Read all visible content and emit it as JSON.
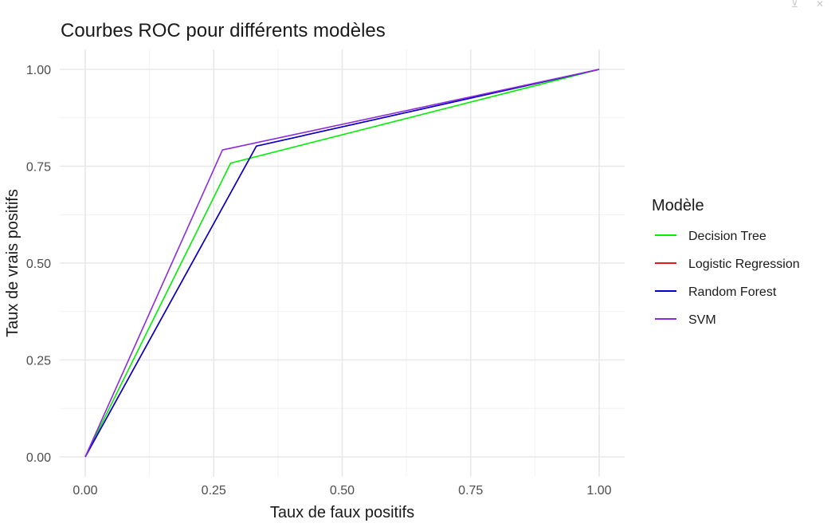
{
  "window_controls": {
    "minimize_glyph": "⊻",
    "close_glyph": "✕"
  },
  "chart_data": {
    "type": "line",
    "title": "Courbes ROC pour différents modèles",
    "xlabel": "Taux de faux positifs",
    "ylabel": "Taux de vrais positifs",
    "xlim": [
      0,
      1
    ],
    "ylim": [
      0,
      1
    ],
    "x_ticks": [
      0,
      0.25,
      0.5,
      0.75,
      1
    ],
    "y_ticks": [
      0,
      0.25,
      0.5,
      0.75,
      1
    ],
    "x_tick_labels": [
      "0.00",
      "0.25",
      "0.50",
      "0.75",
      "1.00"
    ],
    "y_tick_labels": [
      "0.00",
      "0.25",
      "0.50",
      "0.75",
      "1.00"
    ],
    "grid": true,
    "legend_title": "Modèle",
    "legend_position": "right",
    "series": [
      {
        "name": "Decision Tree",
        "color": "#00EE00",
        "x": [
          0,
          0.283,
          1
        ],
        "y": [
          0,
          0.758,
          1
        ]
      },
      {
        "name": "Logistic Regression",
        "color": "#E31A1C",
        "x": [
          0,
          0.333,
          1
        ],
        "y": [
          0,
          0.802,
          1
        ]
      },
      {
        "name": "Random Forest",
        "color": "#0000CD",
        "x": [
          0,
          0.333,
          1
        ],
        "y": [
          0,
          0.802,
          1
        ]
      },
      {
        "name": "SVM",
        "color": "#8A2BE2",
        "x": [
          0,
          0.267,
          1
        ],
        "y": [
          0,
          0.792,
          1
        ]
      }
    ]
  }
}
